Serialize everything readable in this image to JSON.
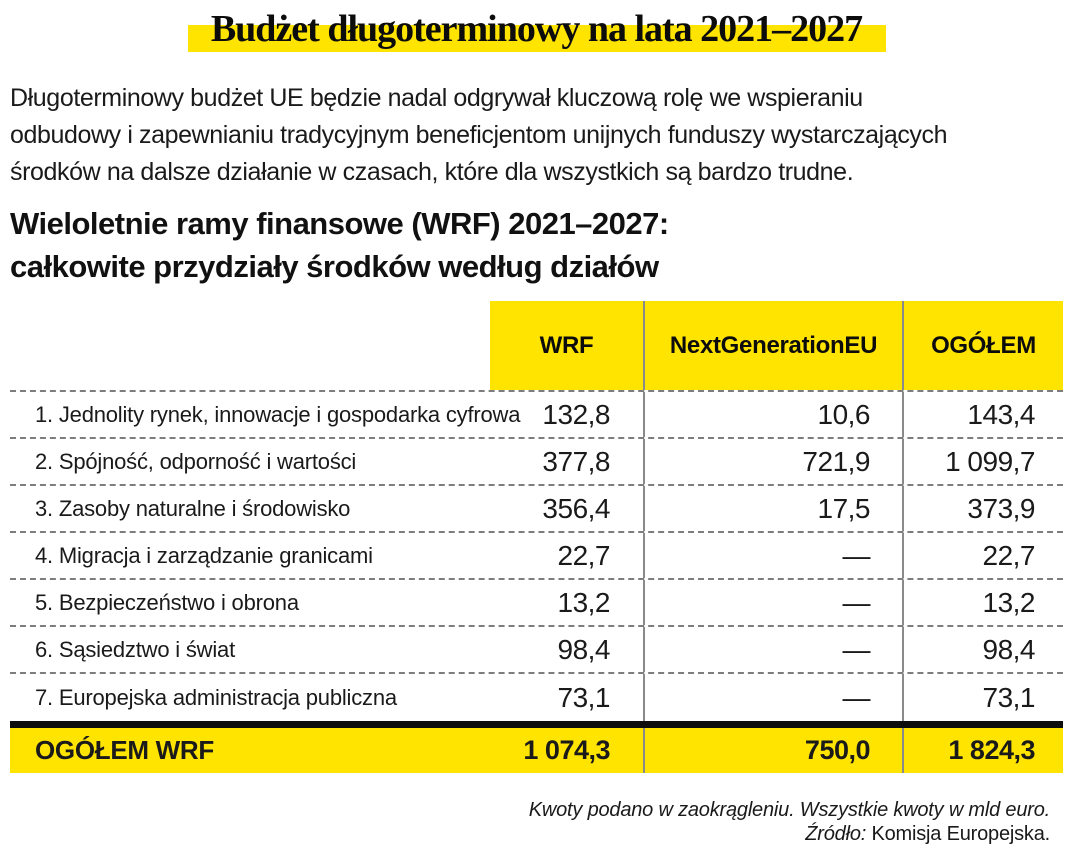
{
  "title": "Budżet długoterminowy na lata 2021–2027",
  "intro": {
    "lines": [
      "Długoterminowy budżet UE będzie nadal odgrywał kluczową rolę we wspieraniu",
      "odbudowy i zapewnianiu tradycyjnym beneficjentom unijnych funduszy wystarczających",
      "środków na dalsze działanie w czasach, które dla wszystkich są bardzo trudne."
    ]
  },
  "heading": {
    "lines": [
      "Wieloletnie ramy finansowe (WRF) 2021–2027:",
      "całkowite przydziały środków według działów"
    ]
  },
  "table": {
    "columns": [
      "WRF",
      "NextGenerationEU",
      "OGÓŁEM"
    ],
    "rows": [
      {
        "label": "1. Jednolity rynek, innowacje i gospodarka cyfrowa",
        "wrf": "132,8",
        "ngeu": "10,6",
        "total": "143,4"
      },
      {
        "label": "2. Spójność, odporność i wartości",
        "wrf": "377,8",
        "ngeu": "721,9",
        "total": "1 099,7"
      },
      {
        "label": "3. Zasoby naturalne i środowisko",
        "wrf": "356,4",
        "ngeu": "17,5",
        "total": "373,9"
      },
      {
        "label": "4. Migracja i zarządzanie granicami",
        "wrf": "22,7",
        "ngeu": "—",
        "total": "22,7"
      },
      {
        "label": "5. Bezpieczeństwo i obrona",
        "wrf": "13,2",
        "ngeu": "—",
        "total": "13,2"
      },
      {
        "label": "6. Sąsiedztwo i świat",
        "wrf": "98,4",
        "ngeu": "—",
        "total": "98,4"
      },
      {
        "label": "7. Europejska administracja publiczna",
        "wrf": "73,1",
        "ngeu": "—",
        "total": "73,1"
      }
    ],
    "total_row": {
      "label": "OGÓŁEM WRF",
      "wrf": "1 074,3",
      "ngeu": "750,0",
      "total": "1 824,3"
    }
  },
  "footer": {
    "note": "Kwoty podano w zaokrągleniu. Wszystkie kwoty w mld euro.",
    "source_label": "Źródło:",
    "source_value": " Komisja Europejska."
  },
  "colors": {
    "accent_yellow": "#ffe400",
    "text": "#1a1a1a",
    "rule_gray": "#8a8a8a",
    "heavy_rule_black": "#0d0d0d"
  }
}
